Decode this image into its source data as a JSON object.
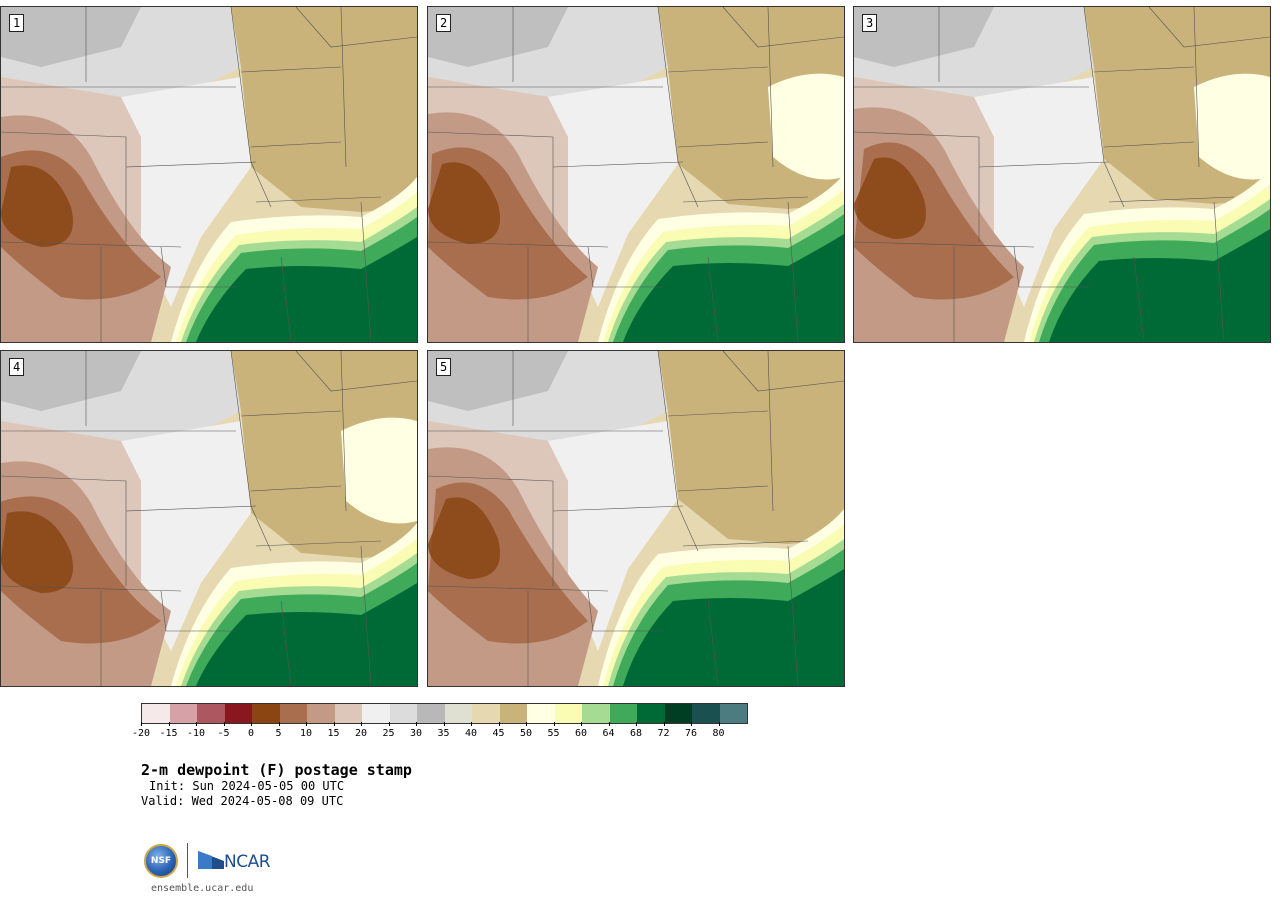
{
  "title": "2-m dewpoint (F) postage stamp",
  "init": "Init: Sun 2024-05-05 00 UTC",
  "valid": "Valid: Wed 2024-05-08 09 UTC",
  "website": "ensemble.ucar.edu",
  "logos": {
    "nsf": "NSF",
    "ncar": "NCAR"
  },
  "panels": [
    {
      "label": "1"
    },
    {
      "label": "2"
    },
    {
      "label": "3"
    },
    {
      "label": "4"
    },
    {
      "label": "5"
    }
  ],
  "colorbar": {
    "colors": [
      "#f5e9e9",
      "#d7a1a8",
      "#ad5761",
      "#8a1620",
      "#8a4513",
      "#a86e4e",
      "#c29a86",
      "#ddc6ba",
      "#f0f0f0",
      "#dcdcdc",
      "#b8b8b8",
      "#e0e0d2",
      "#e6d9b1",
      "#c9b37a",
      "#ffffe4",
      "#fafcb4",
      "#a5db92",
      "#3fab5a",
      "#006a37",
      "#003e24",
      "#1a5050",
      "#4c7b80"
    ],
    "tick_labels": [
      "-20",
      "-15",
      "-10",
      "-5",
      "0",
      "5",
      "10",
      "15",
      "20",
      "25",
      "30",
      "35",
      "40",
      "45",
      "50",
      "55",
      "60",
      "64",
      "68",
      "72",
      "76",
      "80"
    ]
  },
  "palette": {
    "brown_dark": "#8a4513",
    "brown_mid": "#a86e4e",
    "brown_light": "#c29a86",
    "pink_light": "#ddc6ba",
    "gray_light": "#f0f0f0",
    "gray_mid": "#dcdcdc",
    "gray_dark": "#b8b8b8",
    "tan_light": "#e6d9b1",
    "tan_dark": "#c9b37a",
    "cream": "#ffffe4",
    "yellow": "#fafcb4",
    "green_light": "#a5db92",
    "green_mid": "#3fab5a",
    "green_dark": "#006a37"
  }
}
